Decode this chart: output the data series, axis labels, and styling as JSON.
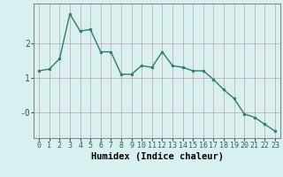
{
  "x": [
    0,
    1,
    2,
    3,
    4,
    5,
    6,
    7,
    8,
    9,
    10,
    11,
    12,
    13,
    14,
    15,
    16,
    17,
    18,
    19,
    20,
    21,
    22,
    23
  ],
  "y": [
    1.2,
    1.25,
    1.55,
    2.85,
    2.35,
    2.4,
    1.75,
    1.75,
    1.1,
    1.1,
    1.35,
    1.3,
    1.75,
    1.35,
    1.3,
    1.2,
    1.2,
    0.95,
    0.65,
    0.4,
    -0.05,
    -0.15,
    -0.35,
    -0.55
  ],
  "line_color": "#2d7d6e",
  "marker": "o",
  "marker_size": 2.0,
  "bg_color": "#d8f0f0",
  "grid_color": "#b8d8d8",
  "xlabel": "Humidex (Indice chaleur)",
  "ylim": [
    -0.75,
    3.15
  ],
  "line_width": 1.0,
  "xlabel_fontsize": 7.5,
  "tick_fontsize": 6.0,
  "ytick_fontsize": 7.0
}
